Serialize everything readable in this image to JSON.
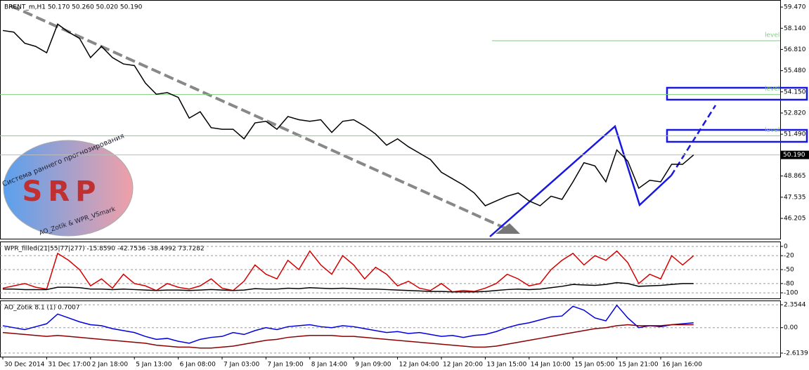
{
  "chart_data": [
    {
      "type": "line",
      "title": "BRENT_m,H1  50.170 50.260 50.020 50.190",
      "color": "#000000",
      "categories": [
        "30 Dec 2014",
        null,
        null,
        null,
        "31 Dec 17:00",
        null,
        null,
        null,
        "2 Jan 18:00",
        null,
        null,
        null,
        "5 Jan 13:00",
        null,
        null,
        null,
        "6 Jan 08:00",
        null,
        null,
        null,
        "7 Jan 03:00",
        null,
        null,
        null,
        "7 Jan 19:00",
        null,
        null,
        null,
        "8 Jan 14:00",
        null,
        null,
        null,
        "9 Jan 09:00",
        null,
        null,
        null,
        "12 Jan 04:00",
        null,
        null,
        null,
        "12 Jan 20:00",
        null,
        null,
        null,
        "13 Jan 15:00",
        null,
        null,
        null,
        "14 Jan 10:00",
        null,
        null,
        null,
        "15 Jan 05:00",
        null,
        null,
        null,
        "15 Jan 21:00",
        null,
        null,
        null,
        "16 Jan 16:00",
        null,
        null,
        null
      ],
      "values": [
        58.0,
        57.9,
        57.2,
        57.0,
        56.6,
        58.4,
        57.9,
        57.5,
        56.3,
        57.0,
        56.3,
        55.9,
        55.8,
        54.7,
        54.0,
        54.1,
        53.8,
        52.5,
        52.9,
        51.9,
        51.8,
        51.8,
        51.2,
        52.2,
        52.3,
        51.8,
        52.6,
        52.4,
        52.3,
        52.4,
        51.6,
        52.3,
        52.4,
        52.0,
        51.5,
        50.8,
        51.2,
        50.7,
        50.3,
        49.9,
        49.1,
        48.7,
        48.3,
        47.8,
        47.0,
        47.3,
        47.6,
        47.8,
        47.3,
        47.0,
        47.6,
        47.4,
        48.5,
        49.7,
        49.5,
        48.5,
        50.5,
        49.8,
        48.1,
        48.6,
        48.5,
        49.6,
        49.6,
        50.19
      ],
      "ylim": [
        44.93,
        59.87
      ],
      "yticks": [
        {
          "value": 59.47,
          "label": "59.470"
        },
        {
          "value": 58.14,
          "label": "58.140"
        },
        {
          "value": 56.81,
          "label": "56.810"
        },
        {
          "value": 55.48,
          "label": "55.480"
        },
        {
          "value": 54.15,
          "label": "54.150"
        },
        {
          "value": 52.82,
          "label": "52.820"
        },
        {
          "value": 51.49,
          "label": "51.490"
        },
        {
          "value": 48.865,
          "label": "48.865"
        },
        {
          "value": 47.535,
          "label": "47.535"
        },
        {
          "value": 46.205,
          "label": "46.205"
        }
      ],
      "last_price": {
        "value": 50.19,
        "label": "50.190"
      },
      "levels": [
        {
          "value": 57.36,
          "label": "level"
        },
        {
          "value": 53.98,
          "label": "level"
        },
        {
          "value": 51.39,
          "label": "level"
        }
      ],
      "level_color": "#7fcf7f"
    },
    {
      "type": "line",
      "title": "WPR_filled(21|55|77|277) -15.8590 -42.7536 -38.4992 73.7282",
      "series": [
        {
          "color": "#d40000",
          "values": [
            -90,
            -85,
            -80,
            -88,
            -92,
            -15,
            -30,
            -50,
            -85,
            -70,
            -90,
            -60,
            -80,
            -85,
            -95,
            -80,
            -88,
            -92,
            -85,
            -70,
            -90,
            -95,
            -75,
            -40,
            -60,
            -70,
            -30,
            -50,
            -10,
            -40,
            -60,
            -20,
            -40,
            -70,
            -45,
            -60,
            -85,
            -75,
            -90,
            -95,
            -80,
            -98,
            -95,
            -97,
            -90,
            -80,
            -60,
            -70,
            -85,
            -80,
            -50,
            -30,
            -15,
            -40,
            -20,
            -30,
            -10,
            -35,
            -80,
            -60,
            -70,
            -20,
            -40,
            -20
          ]
        },
        {
          "color": "#000000",
          "values": [
            -92,
            -92,
            -93,
            -93,
            -93,
            -88,
            -88,
            -89,
            -92,
            -92,
            -93,
            -92,
            -93,
            -94,
            -95,
            -94,
            -94,
            -95,
            -94,
            -93,
            -94,
            -95,
            -94,
            -91,
            -92,
            -92,
            -90,
            -91,
            -89,
            -90,
            -91,
            -90,
            -91,
            -92,
            -92,
            -93,
            -94,
            -95,
            -96,
            -97,
            -97,
            -98,
            -98,
            -98,
            -97,
            -95,
            -93,
            -92,
            -93,
            -92,
            -89,
            -86,
            -82,
            -83,
            -84,
            -82,
            -78,
            -80,
            -86,
            -85,
            -84,
            -82,
            -80,
            -80
          ]
        }
      ],
      "ylim": [
        -112,
        9
      ],
      "yticks": [
        0,
        -20,
        -50,
        -80,
        -100
      ]
    },
    {
      "type": "line",
      "title": "AO_Zotik 8.1 (1) 0.7007",
      "series": [
        {
          "color": "#0000e0",
          "values": [
            0.2,
            0.0,
            -0.2,
            0.1,
            0.4,
            1.4,
            1.0,
            0.6,
            0.3,
            0.2,
            -0.1,
            -0.3,
            -0.5,
            -0.9,
            -1.2,
            -1.1,
            -1.4,
            -1.6,
            -1.2,
            -1.0,
            -0.9,
            -0.5,
            -0.7,
            -0.3,
            0.0,
            -0.2,
            0.1,
            0.2,
            0.3,
            0.1,
            0.0,
            0.2,
            0.1,
            -0.1,
            -0.3,
            -0.5,
            -0.4,
            -0.6,
            -0.5,
            -0.7,
            -0.9,
            -0.8,
            -1.0,
            -0.8,
            -0.7,
            -0.4,
            0.0,
            0.3,
            0.5,
            0.8,
            1.1,
            1.2,
            2.2,
            1.8,
            1.0,
            0.7,
            2.3,
            1.0,
            0.0,
            0.2,
            0.1,
            0.3,
            0.4,
            0.5
          ]
        },
        {
          "color": "#8b0000",
          "values": [
            -0.5,
            -0.6,
            -0.7,
            -0.8,
            -0.9,
            -0.8,
            -0.9,
            -1.0,
            -1.1,
            -1.2,
            -1.3,
            -1.4,
            -1.5,
            -1.6,
            -1.8,
            -1.9,
            -2.0,
            -2.0,
            -2.1,
            -2.1,
            -2.0,
            -1.9,
            -1.7,
            -1.5,
            -1.3,
            -1.2,
            -1.0,
            -0.9,
            -0.8,
            -0.8,
            -0.8,
            -0.9,
            -0.9,
            -1.0,
            -1.1,
            -1.2,
            -1.3,
            -1.4,
            -1.5,
            -1.6,
            -1.7,
            -1.8,
            -1.9,
            -2.0,
            -2.0,
            -1.9,
            -1.7,
            -1.5,
            -1.3,
            -1.1,
            -0.9,
            -0.7,
            -0.5,
            -0.3,
            -0.1,
            0.0,
            0.2,
            0.3,
            0.2,
            0.2,
            0.2,
            0.3,
            0.3,
            0.3
          ]
        }
      ],
      "ylim": [
        -2.98,
        2.72
      ],
      "yticks": [
        {
          "value": 2.3544,
          "label": "2.3544"
        },
        {
          "value": 0,
          "label": "0.00"
        },
        {
          "value": -2.6139,
          "label": "-2.6139"
        }
      ]
    }
  ],
  "logo": {
    "caption": "Система раннего прогнозирования",
    "name": "SRP",
    "credit": "AO_Zotik & WPR_VSmark"
  }
}
